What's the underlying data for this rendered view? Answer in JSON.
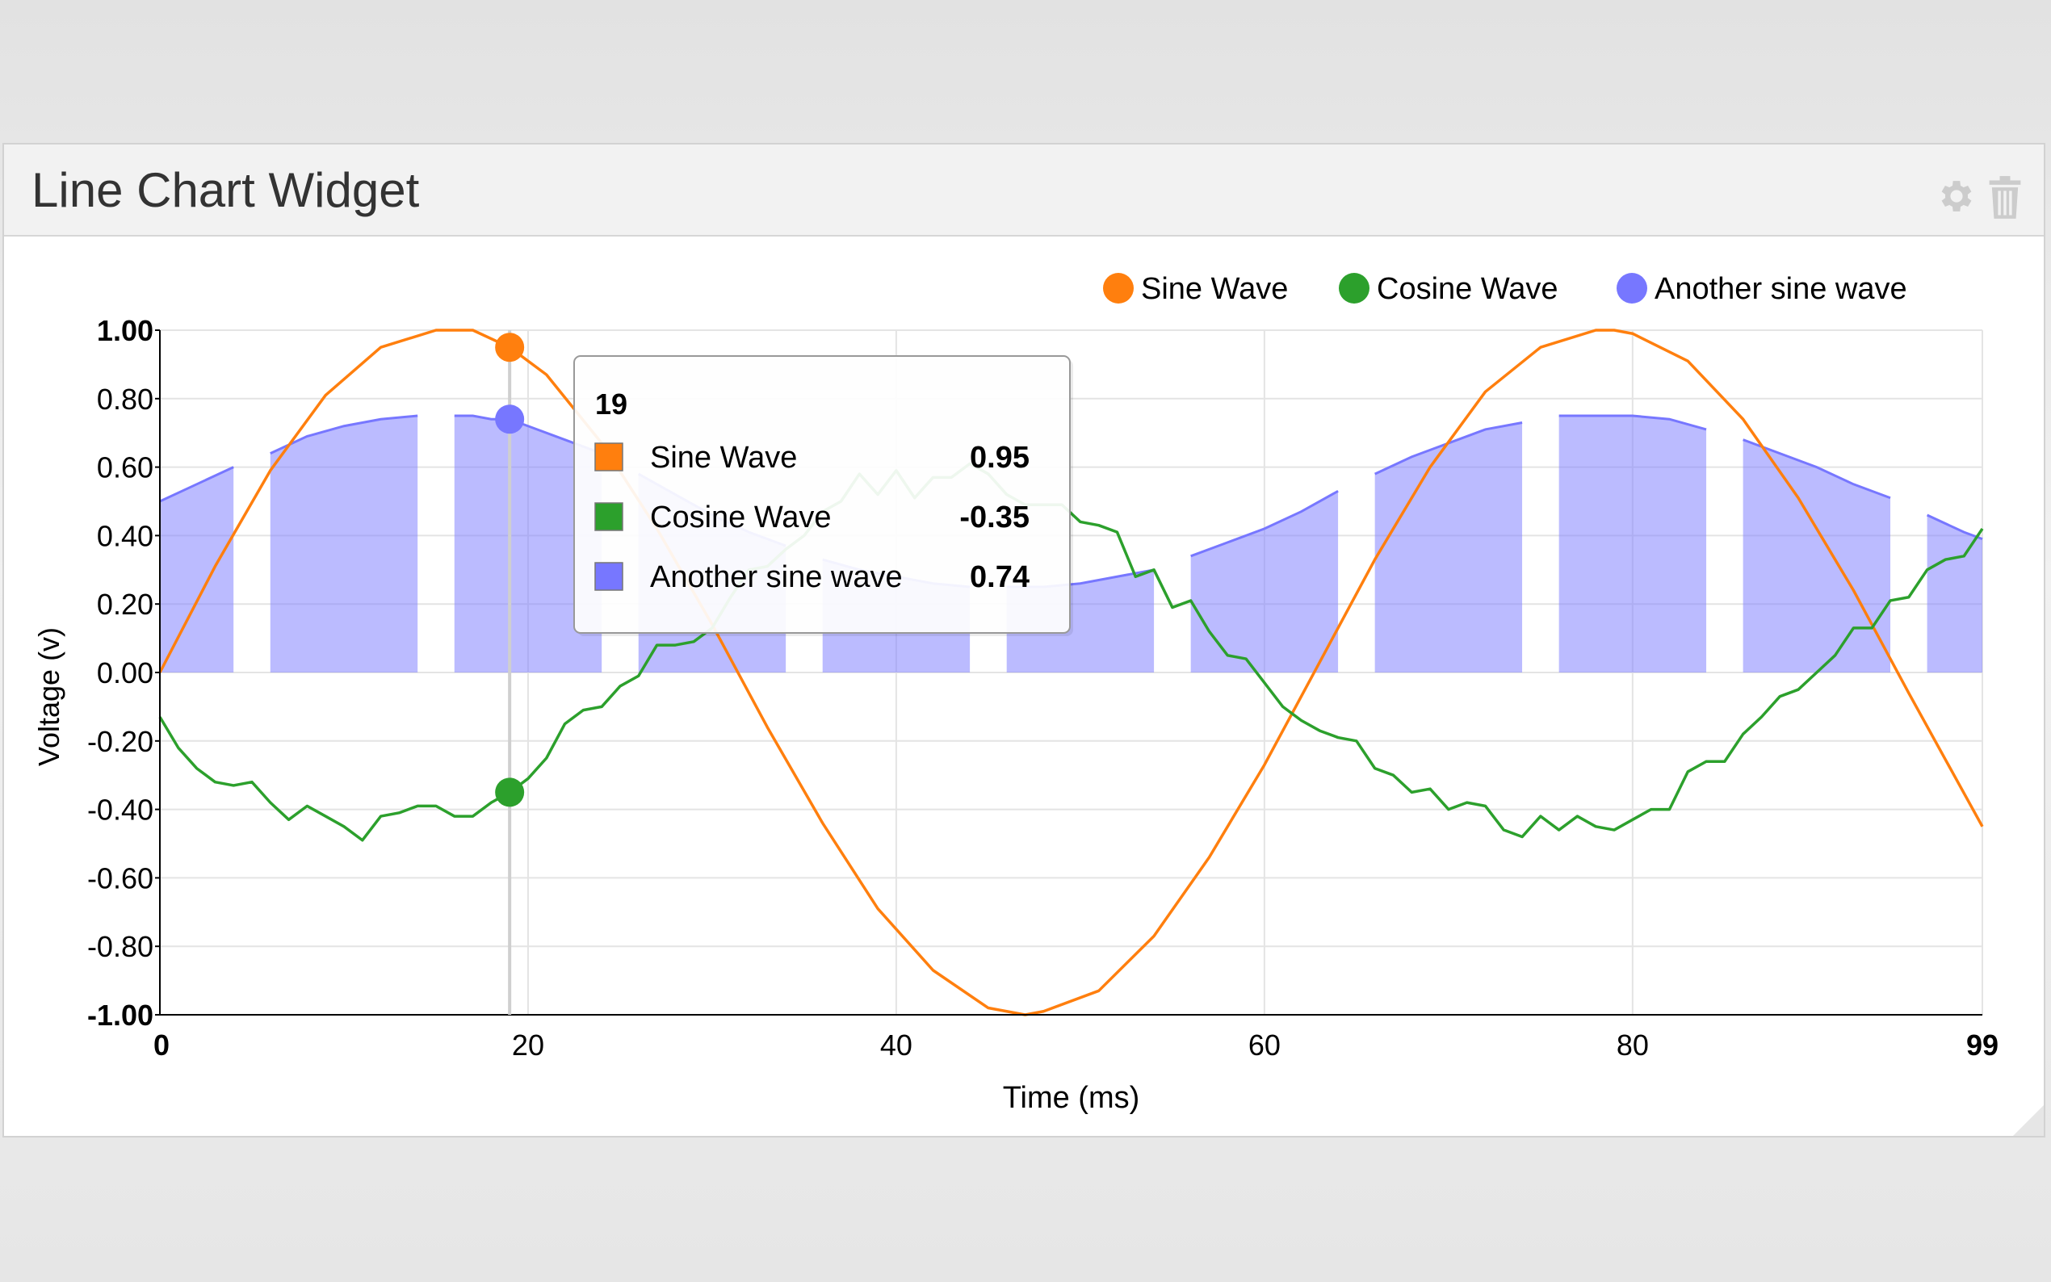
{
  "widget": {
    "title": "Line Chart Widget",
    "settings_icon": "gear-icon",
    "delete_icon": "trash-icon"
  },
  "chart_data": {
    "type": "line",
    "xlabel": "Time (ms)",
    "ylabel": "Voltage (v)",
    "xlim": [
      0,
      99
    ],
    "ylim": [
      -1.0,
      1.0
    ],
    "x_ticks": [
      0,
      20,
      40,
      60,
      80,
      99
    ],
    "x_tick_labels": [
      "0",
      "20",
      "40",
      "60",
      "80",
      "99"
    ],
    "y_ticks": [
      1.0,
      0.8,
      0.6,
      0.4,
      0.2,
      0.0,
      -0.2,
      -0.4,
      -0.6,
      -0.8,
      -1.0
    ],
    "y_tick_labels": [
      "1.00",
      "0.80",
      "0.60",
      "0.40",
      "0.20",
      "0.00",
      "-0.20",
      "-0.40",
      "-0.60",
      "-0.80",
      "-1.00"
    ],
    "grid": true,
    "legend_position": "top-right",
    "series": [
      {
        "name": "Sine Wave",
        "color": "#ff7f0e",
        "style": "line",
        "x": [
          0,
          3,
          6,
          9,
          12,
          15,
          16,
          17,
          19,
          21,
          24,
          27,
          30,
          33,
          36,
          39,
          42,
          45,
          47,
          48,
          51,
          54,
          57,
          60,
          63,
          66,
          69,
          72,
          75,
          78,
          79,
          80,
          83,
          86,
          89,
          92,
          95,
          99
        ],
        "y": [
          0.0,
          0.31,
          0.59,
          0.81,
          0.95,
          1.0,
          1.0,
          1.0,
          0.95,
          0.87,
          0.67,
          0.42,
          0.14,
          -0.16,
          -0.44,
          -0.69,
          -0.87,
          -0.98,
          -1.0,
          -0.99,
          -0.93,
          -0.77,
          -0.54,
          -0.27,
          0.03,
          0.33,
          0.6,
          0.82,
          0.95,
          1.0,
          1.0,
          0.99,
          0.91,
          0.74,
          0.51,
          0.24,
          -0.06,
          -0.45
        ]
      },
      {
        "name": "Cosine Wave",
        "color": "#2ca02c",
        "style": "line",
        "x": [
          0,
          1,
          2,
          3,
          4,
          5,
          6,
          7,
          8,
          9,
          10,
          11,
          12,
          13,
          14,
          15,
          16,
          17,
          18,
          19,
          20,
          21,
          22,
          23,
          24,
          25,
          26,
          27,
          28,
          29,
          30,
          31,
          32,
          33,
          34,
          35,
          36,
          37,
          38,
          39,
          40,
          41,
          42,
          43,
          44,
          45,
          46,
          47,
          48,
          49,
          50,
          51,
          52,
          53,
          54,
          55,
          56,
          57,
          58,
          59,
          60,
          61,
          62,
          63,
          64,
          65,
          66,
          67,
          68,
          69,
          70,
          71,
          72,
          73,
          74,
          75,
          76,
          77,
          78,
          79,
          80,
          81,
          82,
          83,
          84,
          85,
          86,
          87,
          88,
          89,
          90,
          91,
          92,
          93,
          94,
          95,
          96,
          97,
          98,
          99
        ],
        "y": [
          -0.13,
          -0.22,
          -0.28,
          -0.32,
          -0.33,
          -0.32,
          -0.38,
          -0.43,
          -0.39,
          -0.42,
          -0.45,
          -0.49,
          -0.42,
          -0.41,
          -0.39,
          -0.39,
          -0.42,
          -0.42,
          -0.38,
          -0.35,
          -0.31,
          -0.25,
          -0.15,
          -0.11,
          -0.1,
          -0.04,
          -0.01,
          0.08,
          0.08,
          0.09,
          0.13,
          0.22,
          0.3,
          0.31,
          0.36,
          0.4,
          0.47,
          0.5,
          0.58,
          0.52,
          0.59,
          0.51,
          0.57,
          0.57,
          0.61,
          0.58,
          0.52,
          0.49,
          0.49,
          0.49,
          0.44,
          0.43,
          0.41,
          0.28,
          0.3,
          0.19,
          0.21,
          0.12,
          0.05,
          0.04,
          -0.03,
          -0.1,
          -0.14,
          -0.17,
          -0.19,
          -0.2,
          -0.28,
          -0.3,
          -0.35,
          -0.34,
          -0.4,
          -0.38,
          -0.39,
          -0.46,
          -0.48,
          -0.42,
          -0.46,
          -0.42,
          -0.45,
          -0.46,
          -0.43,
          -0.4,
          -0.4,
          -0.29,
          -0.26,
          -0.26,
          -0.18,
          -0.13,
          -0.07,
          -0.05,
          0.0,
          0.05,
          0.13,
          0.13,
          0.21,
          0.22,
          0.3,
          0.33,
          0.34,
          0.42
        ]
      },
      {
        "name": "Another sine wave",
        "color": "#7777ff",
        "style": "area",
        "segments": [
          {
            "x": [
              0,
              2,
              4
            ],
            "y": [
              0.5,
              0.55,
              0.6
            ]
          },
          {
            "x": [
              6,
              8,
              10,
              12,
              14
            ],
            "y": [
              0.64,
              0.69,
              0.72,
              0.74,
              0.75
            ]
          },
          {
            "x": [
              16,
              17,
              18,
              19,
              20,
              22,
              24
            ],
            "y": [
              0.75,
              0.75,
              0.74,
              0.74,
              0.72,
              0.68,
              0.64
            ]
          },
          {
            "x": [
              26,
              28,
              30,
              32,
              34
            ],
            "y": [
              0.58,
              0.52,
              0.46,
              0.41,
              0.37
            ]
          },
          {
            "x": [
              36,
              38,
              40,
              42,
              44
            ],
            "y": [
              0.33,
              0.3,
              0.28,
              0.26,
              0.25
            ]
          },
          {
            "x": [
              46,
              48,
              50,
              52,
              54
            ],
            "y": [
              0.25,
              0.25,
              0.26,
              0.28,
              0.3
            ]
          },
          {
            "x": [
              56,
              58,
              60,
              62,
              64
            ],
            "y": [
              0.34,
              0.38,
              0.42,
              0.47,
              0.53
            ]
          },
          {
            "x": [
              66,
              68,
              70,
              72,
              74
            ],
            "y": [
              0.58,
              0.63,
              0.67,
              0.71,
              0.73
            ]
          },
          {
            "x": [
              76,
              78,
              80,
              82,
              84
            ],
            "y": [
              0.75,
              0.75,
              0.75,
              0.74,
              0.71
            ]
          },
          {
            "x": [
              86,
              88,
              90,
              92,
              94
            ],
            "y": [
              0.68,
              0.64,
              0.6,
              0.55,
              0.51
            ]
          },
          {
            "x": [
              96,
              98,
              99
            ],
            "y": [
              0.46,
              0.41,
              0.39
            ]
          }
        ]
      }
    ],
    "tooltip": {
      "title": "19",
      "x": 19,
      "rows": [
        {
          "label": "Sine Wave",
          "value": "0.95",
          "color": "#ff7f0e",
          "y": 0.95
        },
        {
          "label": "Cosine Wave",
          "value": "-0.35",
          "color": "#2ca02c",
          "y": -0.35
        },
        {
          "label": "Another sine wave",
          "value": "0.74",
          "color": "#7777ff",
          "y": 0.74
        }
      ]
    }
  }
}
